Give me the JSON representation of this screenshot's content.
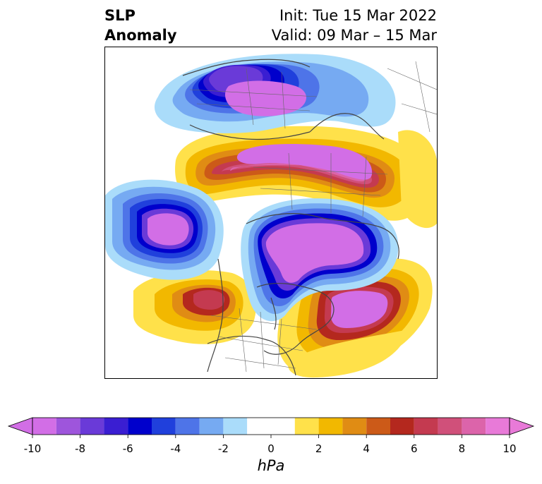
{
  "title": {
    "left_line1": "SLP",
    "left_line2": "Anomaly",
    "right_line1": "Init: Tue 15 Mar 2022",
    "right_line2": "Valid: 09 Mar – 15 Mar"
  },
  "colorbar": {
    "unit": "hPa",
    "ticks": [
      "-10",
      "-8",
      "-6",
      "-4",
      "-2",
      "0",
      "2",
      "4",
      "6",
      "8",
      "10"
    ],
    "levels": [
      -10,
      -9,
      -8,
      -7,
      -6,
      -5,
      -4,
      -3,
      -2,
      -1,
      1,
      2,
      3,
      4,
      5,
      6,
      7,
      8,
      9,
      10
    ],
    "colors": [
      "#d26ee6",
      "#9e55dc",
      "#6a3ad8",
      "#3a1ed2",
      "#0000cc",
      "#2040dc",
      "#4e74e8",
      "#76aaf2",
      "#aadcfa",
      "#ffffff",
      "#ffe14a",
      "#f2b800",
      "#e08c14",
      "#cc5a18",
      "#b4281e",
      "#c43a50",
      "#d0507a",
      "#dc64aa",
      "#e87ad8"
    ],
    "extend": "both"
  },
  "map": {
    "projection": "north-polar-stereographic",
    "field": "sea-level pressure anomaly",
    "negative_centers": [
      "Eastern Siberia",
      "North Pacific / Gulf of Alaska",
      "Arctic Ocean / Canadian Arctic"
    ],
    "positive_centers": [
      "Northern Europe / Western Russia",
      "North Atlantic",
      "Eastern Pacific off California"
    ]
  }
}
